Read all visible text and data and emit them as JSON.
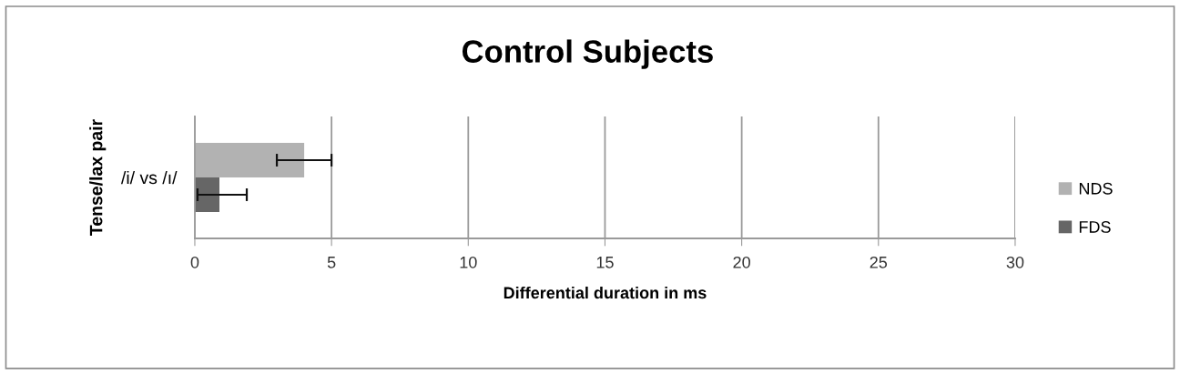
{
  "chart_data": {
    "type": "bar",
    "orientation": "horizontal",
    "title": "Control Subjects",
    "xlabel": "Differential duration in ms",
    "ylabel": "Tense/lax pair",
    "categories": [
      "/i/ vs /ı/"
    ],
    "series": [
      {
        "name": "NDS",
        "color": "#b2b2b2",
        "values": [
          4.0
        ],
        "errors": [
          1.0
        ]
      },
      {
        "name": "FDS",
        "color": "#666666",
        "values": [
          0.9
        ],
        "errors": [
          [
            0.1,
            1.9
          ]
        ]
      }
    ],
    "xlim": [
      0,
      30
    ],
    "xticks": [
      0,
      5,
      10,
      15,
      20,
      25,
      30
    ],
    "grid": "x",
    "legend": "right"
  }
}
